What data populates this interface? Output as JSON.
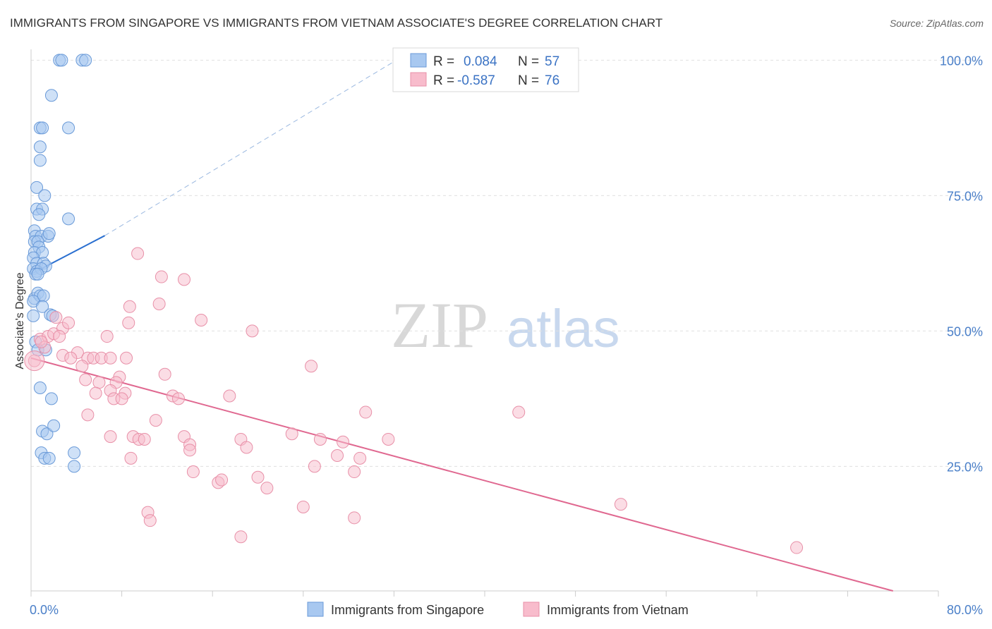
{
  "header": {
    "title": "IMMIGRANTS FROM SINGAPORE VS IMMIGRANTS FROM VIETNAM ASSOCIATE'S DEGREE CORRELATION CHART",
    "source": "Source: ZipAtlas.com"
  },
  "watermark": {
    "zip": "ZIP",
    "atlas": "atlas"
  },
  "legend": {
    "singapore": {
      "r_label": "R =",
      "r_value": "0.084",
      "n_label": "N =",
      "n_value": "57"
    },
    "vietnam": {
      "r_label": "R =",
      "r_value": "-0.587",
      "n_label": "N =",
      "n_value": "76"
    }
  },
  "colors": {
    "singapore_fill": "#a8c8f0",
    "singapore_stroke": "#6a9ad8",
    "singapore_line": "#2a6fd0",
    "vietnam_fill": "#f8bccc",
    "vietnam_stroke": "#e890a8",
    "vietnam_line": "#e06890",
    "grid": "#e0e0e0",
    "tick_label": "#4a7fc8"
  },
  "chart_data": {
    "type": "scatter",
    "title": "IMMIGRANTS FROM SINGAPORE VS IMMIGRANTS FROM VIETNAM ASSOCIATE'S DEGREE CORRELATION CHART",
    "xlabel": "",
    "ylabel": "Associate's Degree",
    "xlim": [
      0,
      80
    ],
    "ylim": [
      2,
      102
    ],
    "x_tick_labels": [
      "0.0%",
      "80.0%"
    ],
    "y_ticks": [
      25,
      50,
      75,
      100
    ],
    "y_tick_labels": [
      "25.0%",
      "50.0%",
      "75.0%",
      "100.0%"
    ],
    "grid": true,
    "legend_position": "bottom",
    "series": [
      {
        "name": "Immigrants from Singapore",
        "r": 0.084,
        "n": 57,
        "trend": {
          "x": [
            0,
            6.5
          ],
          "y": [
            60.5,
            67.6
          ]
        },
        "trend_dashed": {
          "x": [
            6.5,
            33.0
          ],
          "y": [
            67.6,
            101.0
          ]
        },
        "points": [
          {
            "x": 2.5,
            "y": 100.0
          },
          {
            "x": 4.5,
            "y": 100.0
          },
          {
            "x": 4.8,
            "y": 100.0
          },
          {
            "x": 1.8,
            "y": 93.5
          },
          {
            "x": 0.8,
            "y": 87.5
          },
          {
            "x": 1.0,
            "y": 87.5
          },
          {
            "x": 3.3,
            "y": 87.5
          },
          {
            "x": 0.8,
            "y": 84.0
          },
          {
            "x": 0.8,
            "y": 81.5
          },
          {
            "x": 0.5,
            "y": 76.5
          },
          {
            "x": 1.2,
            "y": 75.0
          },
          {
            "x": 0.5,
            "y": 72.5
          },
          {
            "x": 1.0,
            "y": 72.5
          },
          {
            "x": 0.7,
            "y": 71.5
          },
          {
            "x": 3.3,
            "y": 70.7
          },
          {
            "x": 0.3,
            "y": 68.5
          },
          {
            "x": 0.4,
            "y": 67.5
          },
          {
            "x": 0.9,
            "y": 67.5
          },
          {
            "x": 1.5,
            "y": 67.5
          },
          {
            "x": 1.6,
            "y": 68.0
          },
          {
            "x": 0.3,
            "y": 66.5
          },
          {
            "x": 0.6,
            "y": 66.5
          },
          {
            "x": 0.7,
            "y": 65.5
          },
          {
            "x": 0.3,
            "y": 64.5
          },
          {
            "x": 1.0,
            "y": 64.5
          },
          {
            "x": 0.2,
            "y": 63.5
          },
          {
            "x": 0.5,
            "y": 62.5
          },
          {
            "x": 1.1,
            "y": 62.5
          },
          {
            "x": 1.3,
            "y": 62.0
          },
          {
            "x": 0.2,
            "y": 61.5
          },
          {
            "x": 0.5,
            "y": 61.0
          },
          {
            "x": 0.9,
            "y": 61.5
          },
          {
            "x": 0.4,
            "y": 60.5
          },
          {
            "x": 0.6,
            "y": 60.5
          },
          {
            "x": 0.3,
            "y": 56.0
          },
          {
            "x": 0.6,
            "y": 57.0
          },
          {
            "x": 0.8,
            "y": 56.5
          },
          {
            "x": 1.1,
            "y": 56.5
          },
          {
            "x": 0.2,
            "y": 55.5
          },
          {
            "x": 1.0,
            "y": 54.5
          },
          {
            "x": 0.2,
            "y": 52.8
          },
          {
            "x": 1.7,
            "y": 53.0
          },
          {
            "x": 1.9,
            "y": 52.8
          },
          {
            "x": 0.4,
            "y": 48.0
          },
          {
            "x": 0.6,
            "y": 46.5
          },
          {
            "x": 1.3,
            "y": 46.5
          },
          {
            "x": 0.8,
            "y": 39.5
          },
          {
            "x": 1.8,
            "y": 37.5
          },
          {
            "x": 1.0,
            "y": 31.5
          },
          {
            "x": 1.4,
            "y": 31.0
          },
          {
            "x": 2.0,
            "y": 32.5
          },
          {
            "x": 0.9,
            "y": 27.5
          },
          {
            "x": 1.2,
            "y": 26.5
          },
          {
            "x": 1.6,
            "y": 26.5
          },
          {
            "x": 3.8,
            "y": 27.5
          },
          {
            "x": 3.8,
            "y": 25.0
          },
          {
            "x": 2.7,
            "y": 100.0
          }
        ]
      },
      {
        "name": "Immigrants from Vietnam",
        "r": -0.587,
        "n": 76,
        "trend": {
          "x": [
            0,
            76.0
          ],
          "y": [
            45.0,
            2.0
          ]
        },
        "points": [
          {
            "x": 0.3,
            "y": 44.5
          },
          {
            "x": 0.8,
            "y": 48.5
          },
          {
            "x": 1.5,
            "y": 49.0
          },
          {
            "x": 2.0,
            "y": 49.5
          },
          {
            "x": 2.2,
            "y": 52.5
          },
          {
            "x": 2.8,
            "y": 50.5
          },
          {
            "x": 3.3,
            "y": 51.5
          },
          {
            "x": 1.2,
            "y": 47.0
          },
          {
            "x": 0.9,
            "y": 48.0
          },
          {
            "x": 2.5,
            "y": 49.0
          },
          {
            "x": 4.1,
            "y": 46.0
          },
          {
            "x": 2.8,
            "y": 45.5
          },
          {
            "x": 3.5,
            "y": 45.0
          },
          {
            "x": 5.0,
            "y": 45.0
          },
          {
            "x": 4.5,
            "y": 43.5
          },
          {
            "x": 5.5,
            "y": 45.0
          },
          {
            "x": 6.2,
            "y": 45.0
          },
          {
            "x": 7.0,
            "y": 45.0
          },
          {
            "x": 8.4,
            "y": 45.0
          },
          {
            "x": 6.7,
            "y": 49.0
          },
          {
            "x": 8.6,
            "y": 51.5
          },
          {
            "x": 8.7,
            "y": 54.5
          },
          {
            "x": 9.4,
            "y": 64.3
          },
          {
            "x": 11.5,
            "y": 60.0
          },
          {
            "x": 13.5,
            "y": 59.5
          },
          {
            "x": 11.3,
            "y": 55.0
          },
          {
            "x": 15.0,
            "y": 52.0
          },
          {
            "x": 19.5,
            "y": 50.0
          },
          {
            "x": 4.8,
            "y": 41.0
          },
          {
            "x": 6.0,
            "y": 40.5
          },
          {
            "x": 7.8,
            "y": 41.5
          },
          {
            "x": 7.5,
            "y": 40.5
          },
          {
            "x": 5.7,
            "y": 38.5
          },
          {
            "x": 7.0,
            "y": 39.0
          },
          {
            "x": 8.3,
            "y": 38.5
          },
          {
            "x": 7.3,
            "y": 37.5
          },
          {
            "x": 8.0,
            "y": 37.5
          },
          {
            "x": 11.8,
            "y": 42.0
          },
          {
            "x": 12.5,
            "y": 38.0
          },
          {
            "x": 13.0,
            "y": 37.5
          },
          {
            "x": 17.5,
            "y": 38.0
          },
          {
            "x": 24.7,
            "y": 43.5
          },
          {
            "x": 5.0,
            "y": 34.5
          },
          {
            "x": 11.0,
            "y": 33.5
          },
          {
            "x": 9.0,
            "y": 30.5
          },
          {
            "x": 9.5,
            "y": 30.0
          },
          {
            "x": 10.0,
            "y": 30.0
          },
          {
            "x": 13.5,
            "y": 30.5
          },
          {
            "x": 7.0,
            "y": 30.5
          },
          {
            "x": 14.0,
            "y": 29.0
          },
          {
            "x": 14.0,
            "y": 28.0
          },
          {
            "x": 18.5,
            "y": 30.0
          },
          {
            "x": 19.0,
            "y": 28.5
          },
          {
            "x": 23.0,
            "y": 31.0
          },
          {
            "x": 25.5,
            "y": 30.0
          },
          {
            "x": 27.5,
            "y": 29.5
          },
          {
            "x": 29.5,
            "y": 35.0
          },
          {
            "x": 31.5,
            "y": 30.0
          },
          {
            "x": 43.0,
            "y": 35.0
          },
          {
            "x": 8.8,
            "y": 26.5
          },
          {
            "x": 14.3,
            "y": 24.0
          },
          {
            "x": 16.5,
            "y": 22.0
          },
          {
            "x": 16.8,
            "y": 22.5
          },
          {
            "x": 20.0,
            "y": 23.0
          },
          {
            "x": 20.8,
            "y": 21.0
          },
          {
            "x": 25.0,
            "y": 25.0
          },
          {
            "x": 27.0,
            "y": 27.0
          },
          {
            "x": 28.5,
            "y": 24.0
          },
          {
            "x": 29.0,
            "y": 26.5
          },
          {
            "x": 10.3,
            "y": 16.5
          },
          {
            "x": 10.5,
            "y": 15.0
          },
          {
            "x": 18.5,
            "y": 12.0
          },
          {
            "x": 24.0,
            "y": 17.5
          },
          {
            "x": 28.5,
            "y": 15.5
          },
          {
            "x": 52.0,
            "y": 18.0
          },
          {
            "x": 67.5,
            "y": 10.0
          }
        ]
      }
    ]
  },
  "bottom_legend": {
    "singapore_label": "Immigrants from Singapore",
    "vietnam_label": "Immigrants from Vietnam"
  }
}
